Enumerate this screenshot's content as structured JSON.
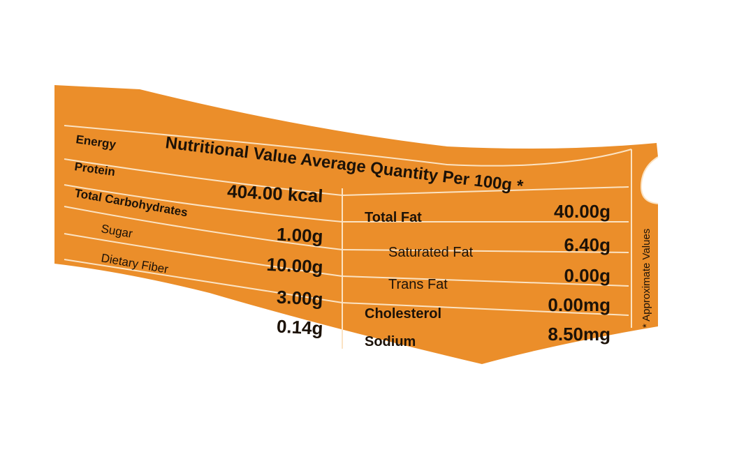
{
  "title": "Nutritional Value Average Quantity Per 100g *",
  "side_note": "* Approximate Values",
  "left_rows": [
    {
      "label": "Energy",
      "value": "404.00 kcal"
    },
    {
      "label": "Protein",
      "value": "1.00g"
    },
    {
      "label": "Total Carbohydrates",
      "value": "10.00g"
    },
    {
      "label": "Sugar",
      "value": "3.00g"
    },
    {
      "label": "Dietary Fiber",
      "value": "0.14g"
    }
  ],
  "right_rows": [
    {
      "label": "Total Fat",
      "value": "40.00g"
    },
    {
      "label": "Saturated Fat",
      "value": "6.40g"
    },
    {
      "label": "Trans Fat",
      "value": "0.00g"
    },
    {
      "label": "Cholesterol",
      "value": "0.00mg"
    },
    {
      "label": "Sodium",
      "value": "8.50mg"
    }
  ],
  "colors": {
    "label_background": "#EB8E2A",
    "text": "#1c1208",
    "lines": "#FBE3C3"
  }
}
